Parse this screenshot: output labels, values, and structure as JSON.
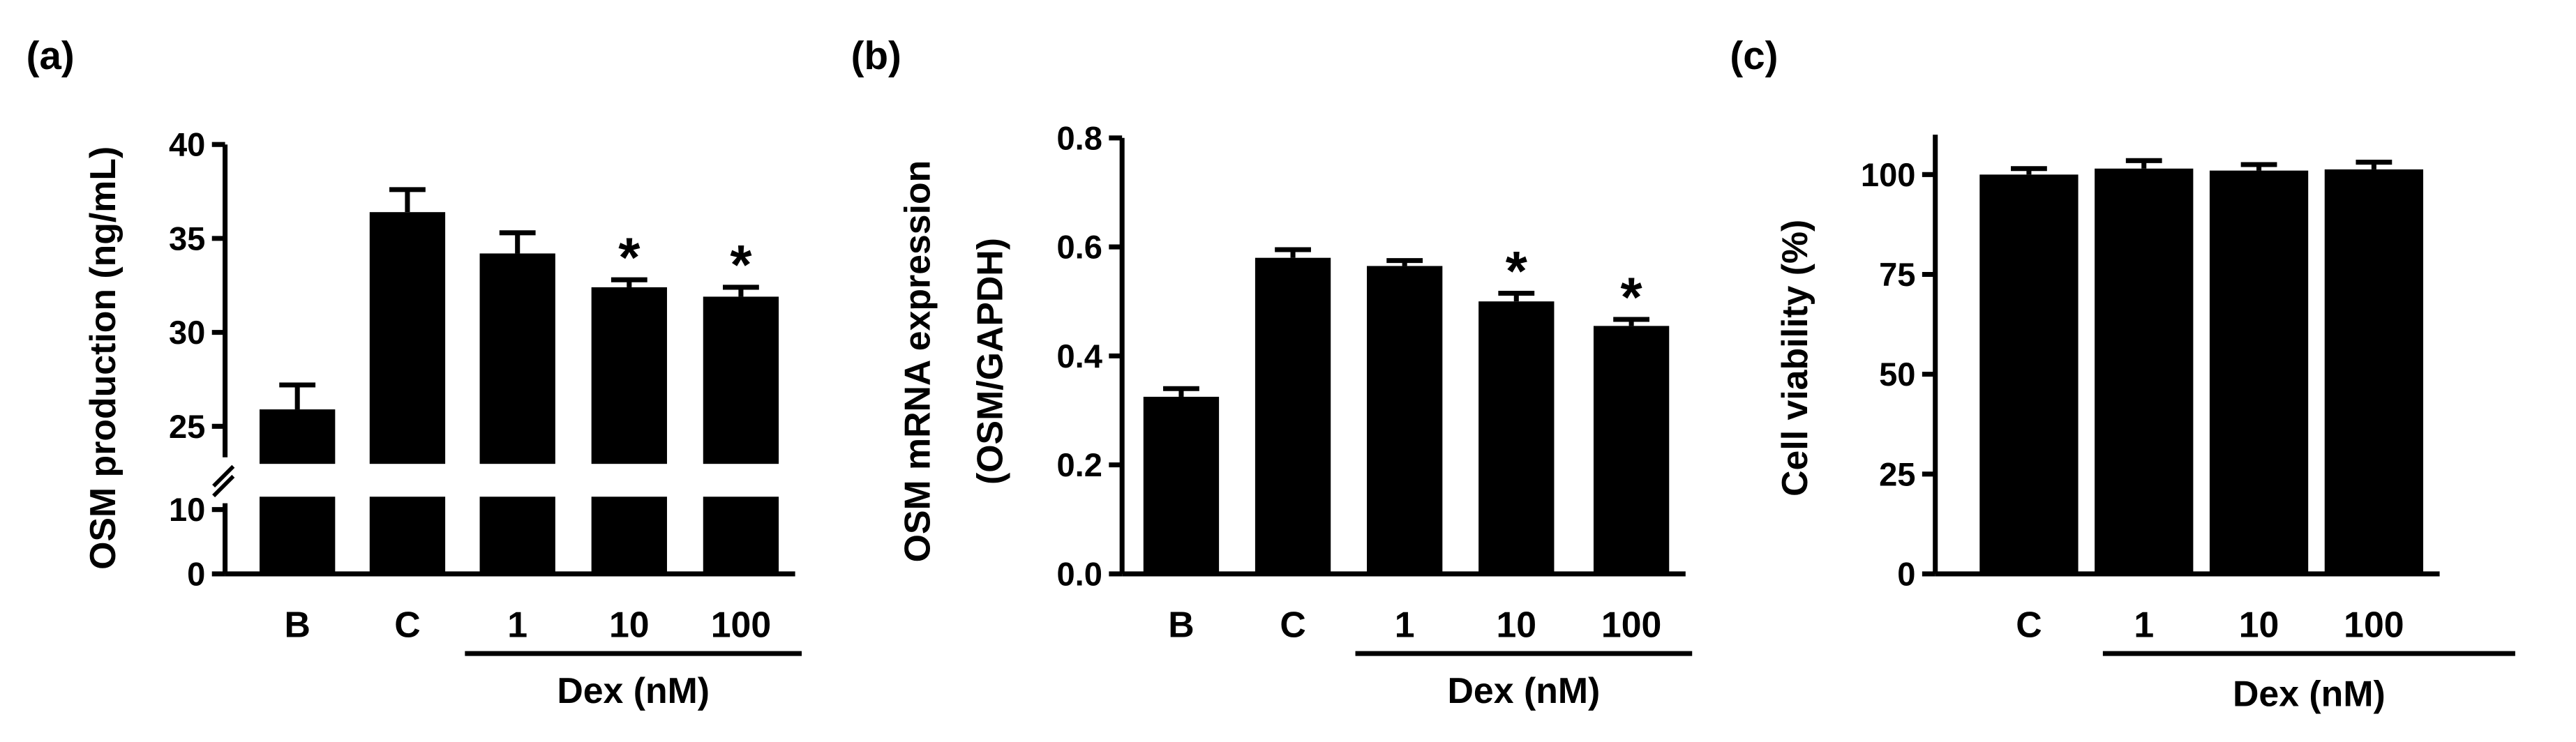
{
  "chart_data": [
    {
      "type": "bar",
      "panel_label": "(a)",
      "categories": [
        "B",
        "C",
        "1",
        "10",
        "100"
      ],
      "values": [
        25.9,
        36.4,
        34.2,
        32.4,
        31.9
      ],
      "errors": [
        1.3,
        1.2,
        1.1,
        0.4,
        0.5
      ],
      "significance": [
        "",
        "",
        "",
        "*",
        "*"
      ],
      "ylabel": "OSM production (ng/mL)",
      "ylim": [
        0,
        40
      ],
      "axis_break": [
        12,
        23
      ],
      "yticks": [
        {
          "value": 0,
          "label": "0"
        },
        {
          "value": 10,
          "label": "10"
        },
        {
          "value": 25,
          "label": "25"
        },
        {
          "value": 30,
          "label": "30"
        },
        {
          "value": 35,
          "label": "35"
        },
        {
          "value": 40,
          "label": "40"
        }
      ],
      "group_label": "Dex (nM)",
      "group_categories": [
        "1",
        "10",
        "100"
      ],
      "bar_color": "#000000"
    },
    {
      "type": "bar",
      "panel_label": "(b)",
      "categories": [
        "B",
        "C",
        "1",
        "10",
        "100"
      ],
      "values": [
        0.325,
        0.58,
        0.565,
        0.5,
        0.455
      ],
      "errors": [
        0.015,
        0.015,
        0.01,
        0.015,
        0.012
      ],
      "significance": [
        "",
        "",
        "",
        "*",
        "*"
      ],
      "ylabel_lines": [
        "OSM mRNA expression",
        "(OSM/GAPDH)"
      ],
      "ylim": [
        0,
        0.8
      ],
      "yticks": [
        {
          "value": 0.0,
          "label": "0.0"
        },
        {
          "value": 0.2,
          "label": "0.2"
        },
        {
          "value": 0.4,
          "label": "0.4"
        },
        {
          "value": 0.6,
          "label": "0.6"
        },
        {
          "value": 0.8,
          "label": "0.8"
        }
      ],
      "group_label": "Dex (nM)",
      "group_categories": [
        "1",
        "10",
        "100"
      ],
      "bar_color": "#000000"
    },
    {
      "type": "bar",
      "panel_label": "(c)",
      "categories": [
        "C",
        "1",
        "10",
        "100"
      ],
      "values": [
        100,
        101.5,
        101,
        101.3
      ],
      "errors": [
        1.5,
        2,
        1.5,
        1.8
      ],
      "significance": [
        "",
        "",
        "",
        ""
      ],
      "ylabel": "Cell viability (%)",
      "ylim": [
        0,
        110
      ],
      "yticks": [
        {
          "value": 0,
          "label": "0"
        },
        {
          "value": 25,
          "label": "25"
        },
        {
          "value": 50,
          "label": "50"
        },
        {
          "value": 75,
          "label": "75"
        },
        {
          "value": 100,
          "label": "100"
        }
      ],
      "group_label": "Dex (nM)",
      "group_categories": [
        "1",
        "10",
        "100"
      ],
      "bar_color": "#000000"
    }
  ]
}
